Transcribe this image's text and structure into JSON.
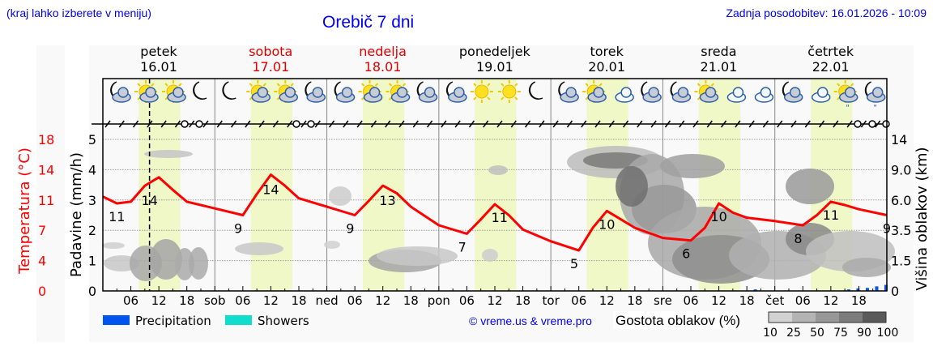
{
  "header": {
    "location_hint": "(kraj lahko izberete v meniju)",
    "title": "Orebič 7 dni",
    "last_update": "Zadnja posodobitev: 16.01.2026 - 10:09"
  },
  "days": [
    {
      "name": "petek",
      "date": "16.01",
      "weekend": false,
      "icons": [
        "moon-cloud-icon",
        "sun-cloud-icon",
        "sun-small-cloud-icon",
        "moon-icon"
      ]
    },
    {
      "name": "sobota",
      "date": "17.01",
      "weekend": true,
      "icons": [
        "moon-icon",
        "sun-small-cloud-icon",
        "sun-small-cloud-icon",
        "moon-cloud-icon"
      ]
    },
    {
      "name": "nedelja",
      "date": "18.01",
      "weekend": true,
      "icons": [
        "moon-cloud-icon",
        "sun-small-cloud-icon",
        "sun-cloud-icon",
        "moon-cloud-icon"
      ]
    },
    {
      "name": "ponedeljek",
      "date": "19.01",
      "weekend": false,
      "icons": [
        "moon-cloud-icon",
        "sun-icon",
        "sun-icon",
        "moon-icon"
      ]
    },
    {
      "name": "torek",
      "date": "20.01",
      "weekend": false,
      "icons": [
        "moon-cloud-icon",
        "sun-cloud-icon",
        "cloud-icon",
        "moon-cloud-icon"
      ]
    },
    {
      "name": "sreda",
      "date": "21.01",
      "weekend": false,
      "icons": [
        "moon-cloud-icon",
        "sun-cloud-icon",
        "cloud-icon",
        "cloud-icon"
      ]
    },
    {
      "name": "četrtek",
      "date": "22.01",
      "weekend": false,
      "icons": [
        "moon-cloud-icon",
        "cloud-icon",
        "sun-cloud-rain-icon",
        "moon-cloud-rain-icon"
      ]
    }
  ],
  "axes": {
    "temperature_label": "Temperatura (°C)",
    "temperature_ticks": [
      "18",
      "14",
      "11",
      "7",
      "4",
      "0"
    ],
    "precip_label": "Padavine (mm/h)",
    "precip_ticks": [
      "5",
      "4",
      "3",
      "2",
      "1",
      "0"
    ],
    "cloud_height_label": "Višina oblakov (km)",
    "cloud_height_ticks": [
      "14",
      "9.0",
      "6.0",
      "3.5",
      "1.5",
      "0"
    ],
    "x_ticks": [
      "06",
      "12",
      "18",
      "sob",
      "06",
      "12",
      "18",
      "ned",
      "06",
      "12",
      "18",
      "pon",
      "06",
      "12",
      "18",
      "tor",
      "06",
      "12",
      "18",
      "sre",
      "06",
      "12",
      "18",
      "čet",
      "06",
      "12",
      "18"
    ]
  },
  "legend": {
    "precipitation": "Precipitation",
    "showers": "Showers",
    "credit": "© vreme.us & vreme.pro",
    "cloud_density_title": "Gostota oblakov (%)",
    "cloud_density_ticks": [
      "10",
      "25",
      "50",
      "75",
      "90",
      "100"
    ]
  },
  "colors": {
    "temperature": "#ff0000",
    "precipitation": "#0055ee",
    "showers": "#11ddcc",
    "daylight": "#f0f8c8",
    "title_blue": "#0000ee",
    "weekend_red": "#dd0000"
  },
  "chart_data": {
    "type": "line",
    "title": "Orebič 7 dni",
    "xlabel": "",
    "ylabel": "Temperatura (°C)",
    "ylim": [
      0,
      18
    ],
    "grid": true,
    "series": [
      {
        "name": "Temperatura (°C)",
        "x_hours": [
          0,
          3,
          6,
          9,
          12,
          15,
          18,
          24,
          30,
          33,
          36,
          39,
          42,
          48,
          54,
          57,
          60,
          63,
          66,
          72,
          78,
          81,
          84,
          87,
          90,
          96,
          102,
          105,
          108,
          111,
          114,
          120,
          126,
          129,
          132,
          135,
          138,
          144,
          150,
          153,
          156,
          159,
          162,
          168
        ],
        "values": [
          11.2,
          10.4,
          10.6,
          12.5,
          13.5,
          12.0,
          10.6,
          9.8,
          9.0,
          11.5,
          13.8,
          12.5,
          11.0,
          10.0,
          9.0,
          10.7,
          12.5,
          11.6,
          10.0,
          7.8,
          6.8,
          8.5,
          10.3,
          9.0,
          7.3,
          5.9,
          4.8,
          7.5,
          9.5,
          8.5,
          7.5,
          6.3,
          6.0,
          7.5,
          10.4,
          9.3,
          8.7,
          8.3,
          7.8,
          9.0,
          10.6,
          10.2,
          9.7,
          9.0
        ],
        "labels": [
          {
            "hour": 3,
            "value": 11
          },
          {
            "hour": 10,
            "value": 14
          },
          {
            "hour": 29,
            "value": 9
          },
          {
            "hour": 36,
            "value": 14
          },
          {
            "hour": 53,
            "value": 9
          },
          {
            "hour": 61,
            "value": 13
          },
          {
            "hour": 77,
            "value": 7
          },
          {
            "hour": 85,
            "value": 11
          },
          {
            "hour": 101,
            "value": 5
          },
          {
            "hour": 108,
            "value": 10
          },
          {
            "hour": 125,
            "value": 6
          },
          {
            "hour": 132,
            "value": 10
          },
          {
            "hour": 149,
            "value": 8
          },
          {
            "hour": 156,
            "value": 11
          },
          {
            "hour": 168,
            "value": 9
          }
        ]
      },
      {
        "name": "Precipitation (mm/h)",
        "x_hours": [
          140,
          160,
          162,
          164,
          166,
          168
        ],
        "values": [
          0.05,
          0.05,
          0.08,
          0.1,
          0.15,
          0.2
        ]
      }
    ],
    "secondary_axes": {
      "precip_mm_h": [
        0,
        5
      ],
      "cloud_height_km_ticks": [
        0,
        1.5,
        3.5,
        6.0,
        9.0,
        14
      ]
    },
    "categories": [
      "petek 16.01",
      "sobota 17.01",
      "nedelja 18.01",
      "ponedeljek 19.01",
      "torek 20.01",
      "sreda 21.01",
      "četrtek 22.01"
    ],
    "current_time_marker_hour": 10,
    "legend_position": "bottom"
  }
}
